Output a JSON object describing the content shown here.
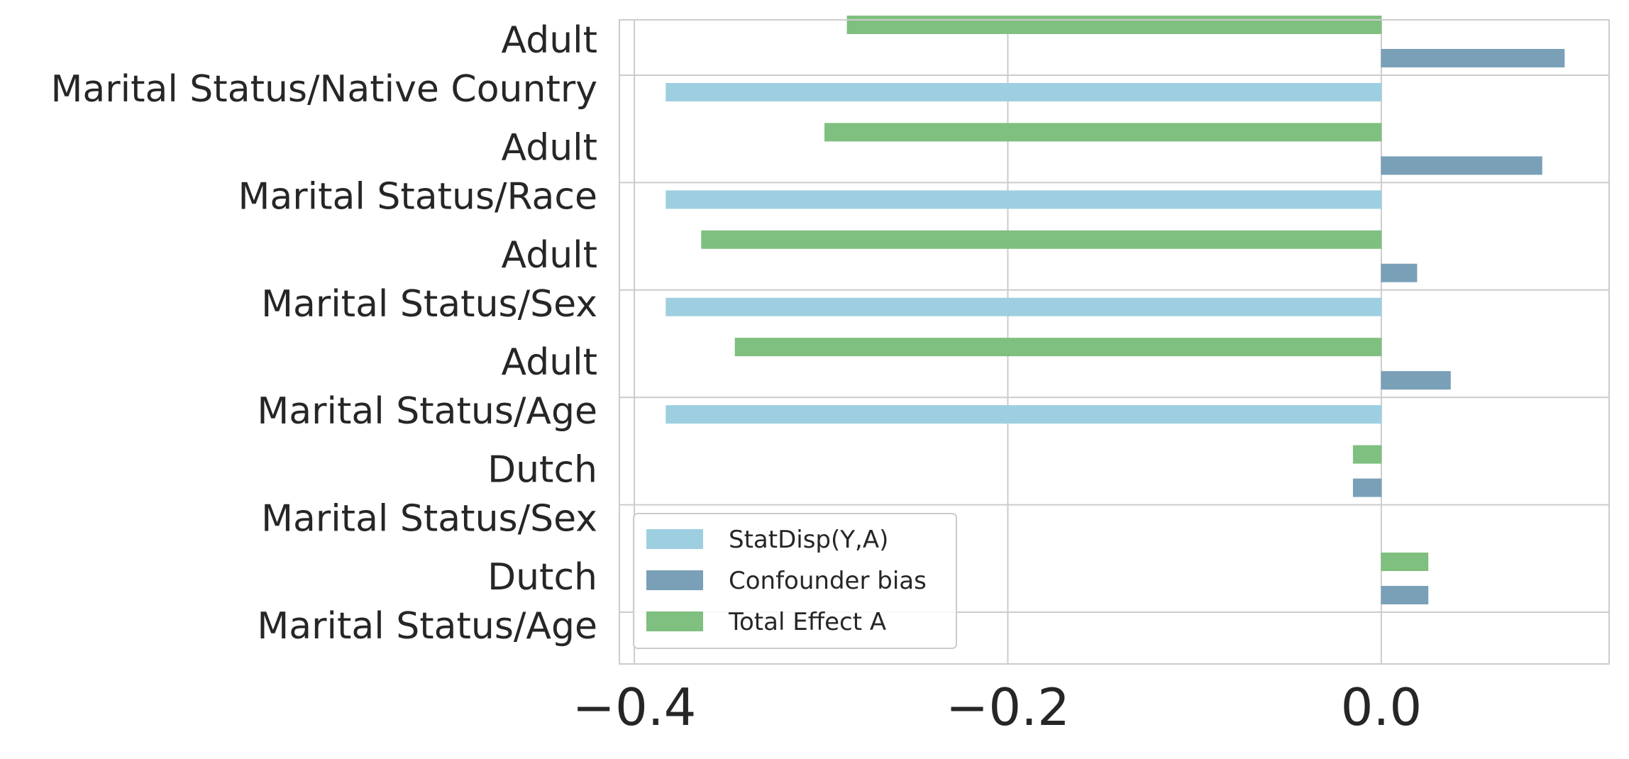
{
  "chart_data": {
    "type": "bar",
    "orientation": "horizontal",
    "categories": [
      [
        "Adult",
        "Marital Status/Native Country"
      ],
      [
        "Adult",
        "Marital Status/Race"
      ],
      [
        "Adult",
        "Marital Status/Sex"
      ],
      [
        "Adult",
        "Marital Status/Age"
      ],
      [
        "Dutch",
        "Marital Status/Sex"
      ],
      [
        "Dutch",
        "Marital Status/Age"
      ]
    ],
    "series": [
      {
        "name": "StatDisp(Y,A)",
        "color": "#9ecfe0",
        "values": [
          -0.383,
          -0.383,
          -0.383,
          -0.383,
          0.0,
          0.0
        ]
      },
      {
        "name": "Confounder bias",
        "color": "#7aa0b8",
        "values": [
          0.098,
          0.086,
          0.019,
          0.037,
          -0.015,
          0.025
        ]
      },
      {
        "name": "Total Effect A",
        "color": "#7fbf7f",
        "values": [
          -0.286,
          -0.298,
          -0.364,
          -0.346,
          -0.015,
          0.025
        ]
      }
    ],
    "xticks": [
      "−0.4",
      "−0.2",
      "0.0"
    ],
    "xtick_values": [
      -0.4,
      -0.2,
      0.0
    ],
    "xlim": [
      -0.408,
      0.122
    ],
    "xlabel": "",
    "ylabel": "",
    "title": "",
    "grid": true,
    "legend_placement": "lower-left"
  }
}
